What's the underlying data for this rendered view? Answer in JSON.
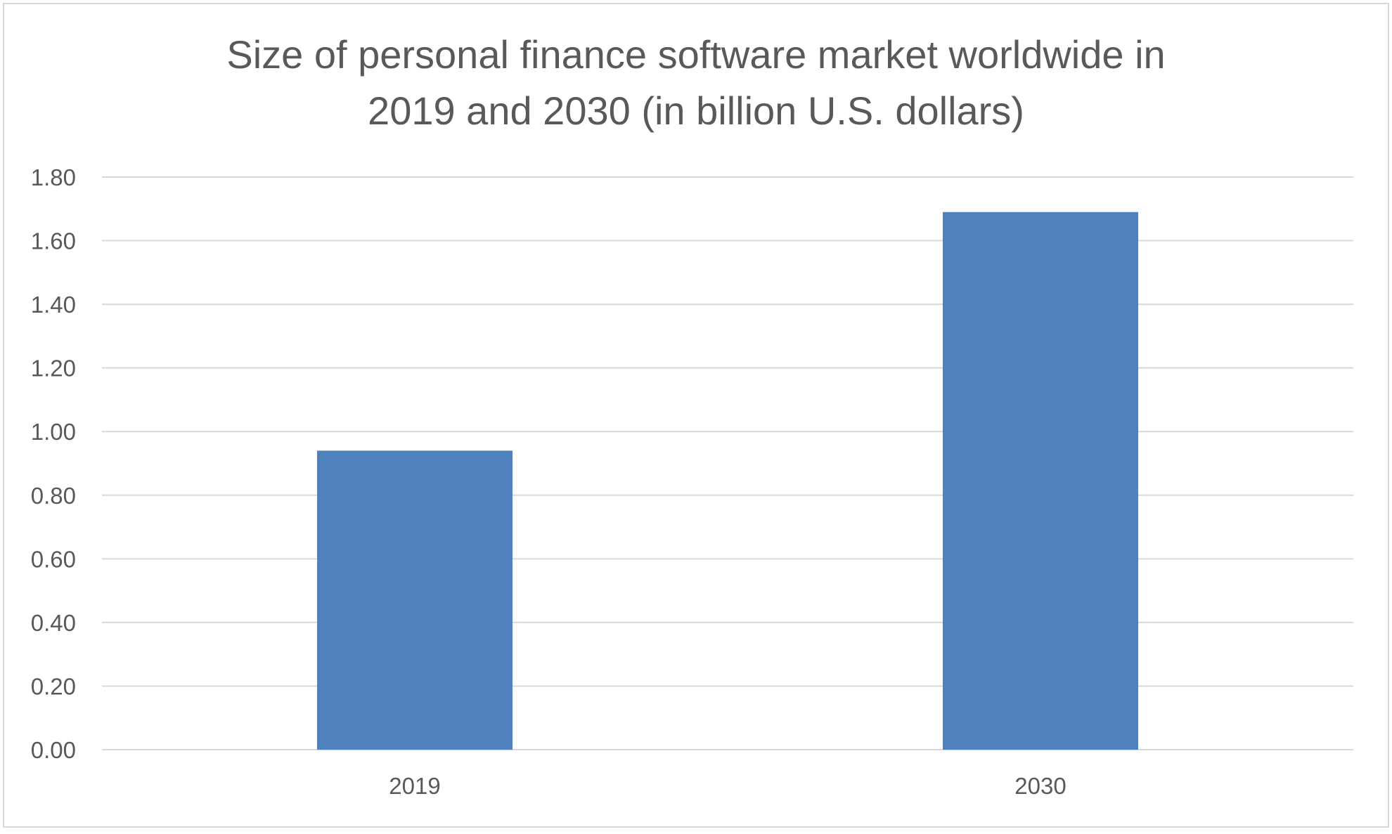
{
  "chart_data": {
    "type": "bar",
    "title_lines": [
      "Size of personal finance software market worldwide in",
      "2019 and 2030 (in billion U.S. dollars)"
    ],
    "categories": [
      "2019",
      "2030"
    ],
    "values": [
      0.94,
      1.69
    ],
    "ylim": [
      0,
      1.8
    ],
    "yticks": [
      "0.00",
      "0.20",
      "0.40",
      "0.60",
      "0.80",
      "1.00",
      "1.20",
      "1.40",
      "1.60",
      "1.80"
    ],
    "xlabel": "",
    "ylabel": "",
    "grid": true,
    "legend": "none",
    "colors": {
      "bar": "#4f81bd",
      "grid": "#d9d9d9",
      "text": "#595959",
      "border": "#d9d9d9"
    }
  }
}
